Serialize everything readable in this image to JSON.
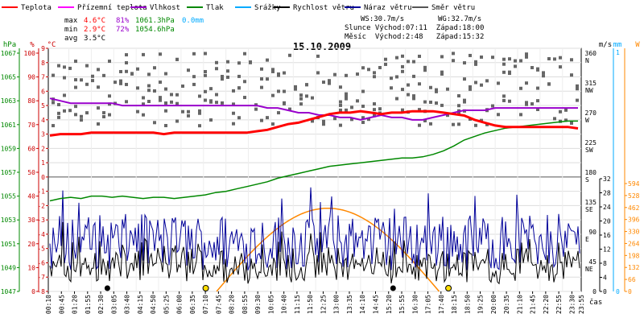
{
  "chart_data": {
    "type": "line",
    "title": "15.10.2009",
    "legend": [
      {
        "label": "Teplota",
        "color": "#ff0000"
      },
      {
        "label": "Přízemní teplota",
        "color": "#ff00ff"
      },
      {
        "label": "Vlhkost",
        "color": "#9900cc"
      },
      {
        "label": "Tlak",
        "color": "#008800"
      },
      {
        "label": "Srážky",
        "color": "#00aaff"
      },
      {
        "label": "Rychlost větru",
        "color": "#000000"
      },
      {
        "label": "Náraz větru",
        "color": "#000099"
      },
      {
        "label": "Směr větru",
        "color": "#555555"
      }
    ],
    "stats": {
      "max": {
        "label": "max",
        "temp": "4.6°C",
        "hum": "81%",
        "press": "1061.3hPa",
        "rain": "0.0mm"
      },
      "min": {
        "label": "min",
        "temp": "2.9°C",
        "hum": "72%",
        "press": "1054.6hPa"
      },
      "avg": {
        "label": "avg",
        "temp": "3.5°C"
      }
    },
    "info": {
      "ws": "WS:30.7m/s",
      "wg": "WG:32.7m/s",
      "sun": "Slunce Východ:07:11  Západ:18:00",
      "moon": "Měsíc  Východ:2:48   Západ:15:32"
    },
    "axes": {
      "hpa": {
        "title": "hPa",
        "ticks": [
          "1067",
          "1065",
          "1063",
          "1061",
          "1059",
          "1057",
          "1055",
          "1053",
          "1051",
          "1049",
          "1047"
        ]
      },
      "pct": {
        "title": "%",
        "ticks": [
          "100",
          "90",
          "80",
          "70",
          "60",
          "50",
          "40",
          "30",
          "20",
          "10",
          "0"
        ]
      },
      "degc": {
        "title": "°C",
        "ticks": [
          "9",
          "8",
          "7",
          "6",
          "5",
          "4",
          "3",
          "2",
          "1",
          "0",
          "-1",
          "-2",
          "-3",
          "-4",
          "-5",
          "-6",
          "-7",
          "-8"
        ]
      },
      "dir": {
        "ticks": [
          {
            "deg": "360",
            "lbl": "N"
          },
          {
            "deg": "315",
            "lbl": "NW"
          },
          {
            "deg": "270",
            "lbl": "W"
          },
          {
            "deg": "225",
            "lbl": "SW"
          },
          {
            "deg": "180",
            "lbl": "S"
          },
          {
            "deg": "135",
            "lbl": "SE"
          },
          {
            "deg": "90",
            "lbl": "E"
          },
          {
            "deg": "45",
            "lbl": "NE"
          },
          {
            "deg": "0",
            "lbl": ""
          }
        ]
      },
      "ms": {
        "title": "m/s",
        "ticks": [
          "32",
          "28",
          "24",
          "20",
          "16",
          "12",
          "8",
          "4",
          "0"
        ]
      },
      "mm": {
        "title": "mm",
        "ticks": [
          "1",
          "0"
        ]
      },
      "watt": {
        "title": "W",
        "ticks": [
          "594",
          "528",
          "462",
          "396",
          "330",
          "264",
          "198",
          "132",
          "66",
          "0"
        ]
      }
    },
    "xlabel": "čas",
    "xticks": [
      "00:10",
      "00:45",
      "01:20",
      "01:55",
      "02:30",
      "03:05",
      "03:40",
      "04:15",
      "04:50",
      "05:25",
      "06:00",
      "06:35",
      "07:10",
      "07:45",
      "08:20",
      "08:55",
      "09:30",
      "10:05",
      "10:40",
      "11:15",
      "11:50",
      "12:25",
      "13:00",
      "13:35",
      "14:10",
      "14:45",
      "15:20",
      "15:55",
      "16:30",
      "17:05",
      "17:40",
      "18:15",
      "18:50",
      "19:25",
      "20:00",
      "20:35",
      "21:10",
      "21:45",
      "22:20",
      "22:55",
      "23:30"
    ],
    "series_x_range": [
      "00:10",
      "23:55"
    ],
    "temperature": [
      2.9,
      3.0,
      3.0,
      3.0,
      3.1,
      3.1,
      3.1,
      3.1,
      3.1,
      3.1,
      3.1,
      3.0,
      3.1,
      3.1,
      3.1,
      3.1,
      3.1,
      3.1,
      3.1,
      3.1,
      3.2,
      3.3,
      3.5,
      3.7,
      3.8,
      4.0,
      4.2,
      4.4,
      4.5,
      4.5,
      4.6,
      4.5,
      4.4,
      4.5,
      4.5,
      4.6,
      4.6,
      4.6,
      4.5,
      4.4,
      4.3,
      4.0,
      3.8,
      3.6,
      3.5,
      3.5,
      3.5,
      3.5,
      3.5,
      3.5,
      3.5,
      3.4
    ],
    "humidity": [
      81,
      80,
      79,
      79,
      79,
      79,
      79,
      78,
      78,
      78,
      78,
      78,
      78,
      78,
      78,
      78,
      78,
      78,
      78,
      78,
      78,
      77,
      77,
      76,
      75,
      75,
      74,
      74,
      73,
      73,
      72,
      73,
      74,
      73,
      73,
      72,
      72,
      73,
      74,
      75,
      76,
      76,
      76,
      77,
      77,
      77,
      77,
      77,
      77,
      77,
      77,
      77
    ],
    "pressure": [
      1054.6,
      1054.8,
      1054.9,
      1054.8,
      1055.0,
      1055.0,
      1054.9,
      1055.0,
      1054.9,
      1054.8,
      1054.9,
      1054.9,
      1054.8,
      1054.9,
      1055.0,
      1055.1,
      1055.3,
      1055.4,
      1055.6,
      1055.8,
      1056.0,
      1056.2,
      1056.5,
      1056.7,
      1056.9,
      1057.1,
      1057.3,
      1057.5,
      1057.6,
      1057.7,
      1057.8,
      1057.9,
      1058.0,
      1058.1,
      1058.2,
      1058.2,
      1058.3,
      1058.5,
      1058.8,
      1059.2,
      1059.7,
      1060.0,
      1060.3,
      1060.5,
      1060.7,
      1060.8,
      1060.9,
      1061.0,
      1061.1,
      1061.2,
      1061.3,
      1061.3
    ],
    "solar_peak_w": 458,
    "solar_range": [
      "07:40",
      "17:35"
    ]
  }
}
